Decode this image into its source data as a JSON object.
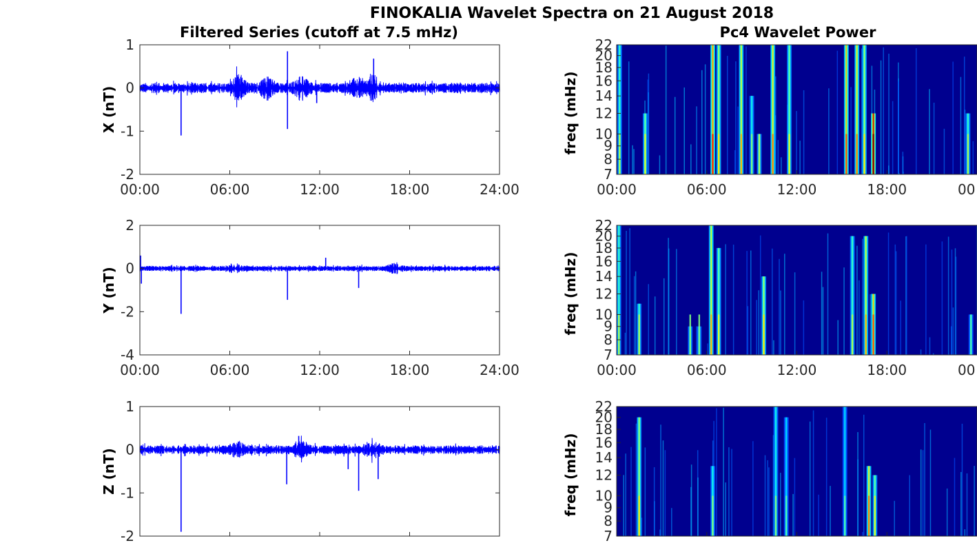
{
  "figure": {
    "title": "FINOKALIA Wavelet Spectra on 21 August 2018",
    "left_title": "Filtered Series (cutoff at 7.5 mHz)",
    "right_title": "Pc4 Wavelet Power"
  },
  "colors": {
    "trace": "#0000ff",
    "heat_background": "#00008f",
    "axis": "#262626"
  },
  "chart_data": [
    {
      "type": "line",
      "ylabel": "X (nT)",
      "ylim": [
        -2,
        1
      ],
      "yticks": [
        1,
        0,
        -1,
        -2
      ],
      "xticks": [
        "00:00",
        "06:00",
        "12:00",
        "18:00",
        "24:00"
      ],
      "xlim_hours": [
        0,
        24
      ],
      "series": [
        {
          "values_hours": [
            0,
            24
          ]
        }
      ],
      "baseline": 0.0,
      "noise_amplitude": 0.12,
      "bursts": [
        {
          "t": 6.6,
          "amp": 0.22
        },
        {
          "t": 8.5,
          "amp": 0.18
        },
        {
          "t": 10.8,
          "amp": 0.2
        },
        {
          "t": 15.5,
          "amp": 0.22
        },
        {
          "t": 14.5,
          "amp": 0.15
        }
      ],
      "spikes": [
        {
          "t": 2.75,
          "v": -1.1
        },
        {
          "t": 9.85,
          "v": 0.85
        },
        {
          "t": 9.85,
          "v": -0.95
        },
        {
          "t": 15.6,
          "v": 0.68
        },
        {
          "t": 11.8,
          "v": -0.35
        }
      ]
    },
    {
      "type": "line",
      "ylabel": "Y (nT)",
      "ylim": [
        -4,
        2
      ],
      "yticks": [
        2,
        0,
        -2,
        -4
      ],
      "xticks": [
        "00:00",
        "06:00",
        "12:00",
        "18:00",
        "24:00"
      ],
      "xlim_hours": [
        0,
        24
      ],
      "baseline": 0.0,
      "noise_amplitude": 0.12,
      "bursts": [
        {
          "t": 6.3,
          "amp": 0.15
        },
        {
          "t": 17.0,
          "amp": 0.14
        }
      ],
      "spikes": [
        {
          "t": 2.75,
          "v": -2.1
        },
        {
          "t": 9.85,
          "v": -1.45
        },
        {
          "t": 14.6,
          "v": -0.9
        },
        {
          "t": 12.4,
          "v": 0.5
        },
        {
          "t": 0.05,
          "v": 0.6
        },
        {
          "t": 0.1,
          "v": -0.7
        }
      ]
    },
    {
      "type": "line",
      "ylabel": "Z (nT)",
      "ylim": [
        -2,
        1
      ],
      "yticks": [
        1,
        0,
        -1,
        -2
      ],
      "xticks": [],
      "xlim_hours": [
        0,
        24
      ],
      "baseline": 0.0,
      "noise_amplitude": 0.1,
      "bursts": [
        {
          "t": 6.5,
          "amp": 0.12
        },
        {
          "t": 10.8,
          "amp": 0.14
        },
        {
          "t": 15.5,
          "amp": 0.1
        }
      ],
      "spikes": [
        {
          "t": 2.75,
          "v": -1.9
        },
        {
          "t": 9.8,
          "v": -0.8
        },
        {
          "t": 14.6,
          "v": -0.95
        },
        {
          "t": 15.9,
          "v": -0.68
        },
        {
          "t": 13.9,
          "v": -0.45
        },
        {
          "t": 10.6,
          "v": 0.32
        }
      ]
    },
    {
      "type": "heatmap",
      "ylabel": "freq (mHz)",
      "yticks": [
        22,
        20,
        18,
        16,
        14,
        12,
        10,
        9,
        8,
        7
      ],
      "xticks": [
        "00:00",
        "06:00",
        "12:00",
        "18:00",
        "00"
      ],
      "xlim_hours": [
        0,
        24
      ],
      "ylim_mhz": [
        7,
        22
      ],
      "streaks": [
        {
          "t": 0.2,
          "intensity": 0.45,
          "fmax": 22
        },
        {
          "t": 1.9,
          "intensity": 0.5,
          "fmax": 12
        },
        {
          "t": 6.4,
          "intensity": 0.75,
          "fmax": 22
        },
        {
          "t": 6.8,
          "intensity": 0.55,
          "fmax": 22
        },
        {
          "t": 8.3,
          "intensity": 0.6,
          "fmax": 22
        },
        {
          "t": 9.0,
          "intensity": 0.4,
          "fmax": 14
        },
        {
          "t": 9.5,
          "intensity": 0.45,
          "fmax": 10
        },
        {
          "t": 10.4,
          "intensity": 0.65,
          "fmax": 22
        },
        {
          "t": 11.5,
          "intensity": 0.5,
          "fmax": 22
        },
        {
          "t": 15.3,
          "intensity": 0.7,
          "fmax": 22
        },
        {
          "t": 16.0,
          "intensity": 0.65,
          "fmax": 22
        },
        {
          "t": 16.5,
          "intensity": 0.55,
          "fmax": 22
        },
        {
          "t": 17.1,
          "intensity": 0.95,
          "fmax": 12
        },
        {
          "t": 23.4,
          "intensity": 0.45,
          "fmax": 12
        }
      ]
    },
    {
      "type": "heatmap",
      "ylabel": "freq (mHz)",
      "yticks": [
        22,
        20,
        18,
        16,
        14,
        12,
        10,
        9,
        8,
        7
      ],
      "xticks": [
        "00:00",
        "06:00",
        "12:00",
        "18:00",
        "00"
      ],
      "xlim_hours": [
        0,
        24
      ],
      "ylim_mhz": [
        7,
        22
      ],
      "streaks": [
        {
          "t": 0.15,
          "intensity": 0.45,
          "fmax": 22
        },
        {
          "t": 1.5,
          "intensity": 0.45,
          "fmax": 11
        },
        {
          "t": 4.9,
          "intensity": 0.4,
          "fmax": 9
        },
        {
          "t": 5.5,
          "intensity": 0.4,
          "fmax": 9
        },
        {
          "t": 6.3,
          "intensity": 0.6,
          "fmax": 22
        },
        {
          "t": 6.8,
          "intensity": 0.5,
          "fmax": 18
        },
        {
          "t": 9.8,
          "intensity": 0.55,
          "fmax": 14
        },
        {
          "t": 15.7,
          "intensity": 0.45,
          "fmax": 20
        },
        {
          "t": 16.6,
          "intensity": 0.6,
          "fmax": 20
        },
        {
          "t": 17.1,
          "intensity": 0.7,
          "fmax": 12
        },
        {
          "t": 23.6,
          "intensity": 0.35,
          "fmax": 10
        }
      ]
    },
    {
      "type": "heatmap",
      "ylabel": "freq (mHz)",
      "yticks": [
        22,
        20,
        18,
        16,
        14,
        12,
        10,
        9,
        8,
        7
      ],
      "xticks": [],
      "xlim_hours": [
        0,
        24
      ],
      "ylim_mhz": [
        7,
        22
      ],
      "streaks": [
        {
          "t": 1.5,
          "intensity": 0.55,
          "fmax": 20
        },
        {
          "t": 6.4,
          "intensity": 0.4,
          "fmax": 13
        },
        {
          "t": 10.6,
          "intensity": 0.4,
          "fmax": 22
        },
        {
          "t": 11.3,
          "intensity": 0.35,
          "fmax": 20
        },
        {
          "t": 15.2,
          "intensity": 0.35,
          "fmax": 22
        },
        {
          "t": 16.8,
          "intensity": 0.65,
          "fmax": 13
        },
        {
          "t": 17.2,
          "intensity": 0.5,
          "fmax": 12
        }
      ]
    }
  ]
}
